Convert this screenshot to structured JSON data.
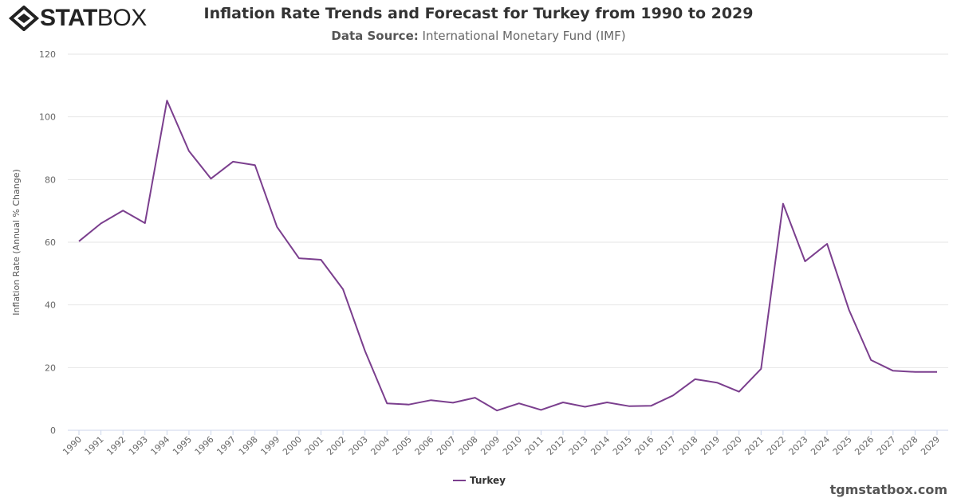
{
  "logo": {
    "text_bold": "STAT",
    "text_light": "BOX"
  },
  "header": {
    "title": "Inflation Rate Trends and Forecast for Turkey from 1990 to 2029",
    "subtitle_label": "Data Source:",
    "subtitle_value": "International Monetary Fund (IMF)"
  },
  "watermark": "tgmstatbox.com",
  "chart_data": {
    "type": "line",
    "title": "Inflation Rate Trends and Forecast for Turkey from 1990 to 2029",
    "ylabel": "Inflation Rate (Annual % Change)",
    "xlabel": "",
    "ylim": [
      0,
      120
    ],
    "yticks": [
      0,
      20,
      40,
      60,
      80,
      100,
      120
    ],
    "grid": true,
    "legend_position": "bottom",
    "x": [
      1990,
      1991,
      1992,
      1993,
      1994,
      1995,
      1996,
      1997,
      1998,
      1999,
      2000,
      2001,
      2002,
      2003,
      2004,
      2005,
      2006,
      2007,
      2008,
      2009,
      2010,
      2011,
      2012,
      2013,
      2014,
      2015,
      2016,
      2017,
      2018,
      2019,
      2020,
      2021,
      2022,
      2023,
      2024,
      2025,
      2026,
      2027,
      2028,
      2029
    ],
    "series": [
      {
        "name": "Turkey",
        "color": "#7b3f8e",
        "values": [
          60.3,
          66.0,
          70.1,
          66.1,
          105.2,
          89.1,
          80.3,
          85.7,
          84.6,
          64.9,
          54.9,
          54.4,
          45.0,
          25.3,
          8.6,
          8.2,
          9.6,
          8.8,
          10.4,
          6.3,
          8.6,
          6.5,
          8.9,
          7.5,
          8.9,
          7.7,
          7.8,
          11.1,
          16.3,
          15.2,
          12.3,
          19.6,
          72.3,
          53.9,
          59.5,
          38.4,
          22.4,
          19.0,
          18.6,
          18.6
        ]
      }
    ]
  }
}
